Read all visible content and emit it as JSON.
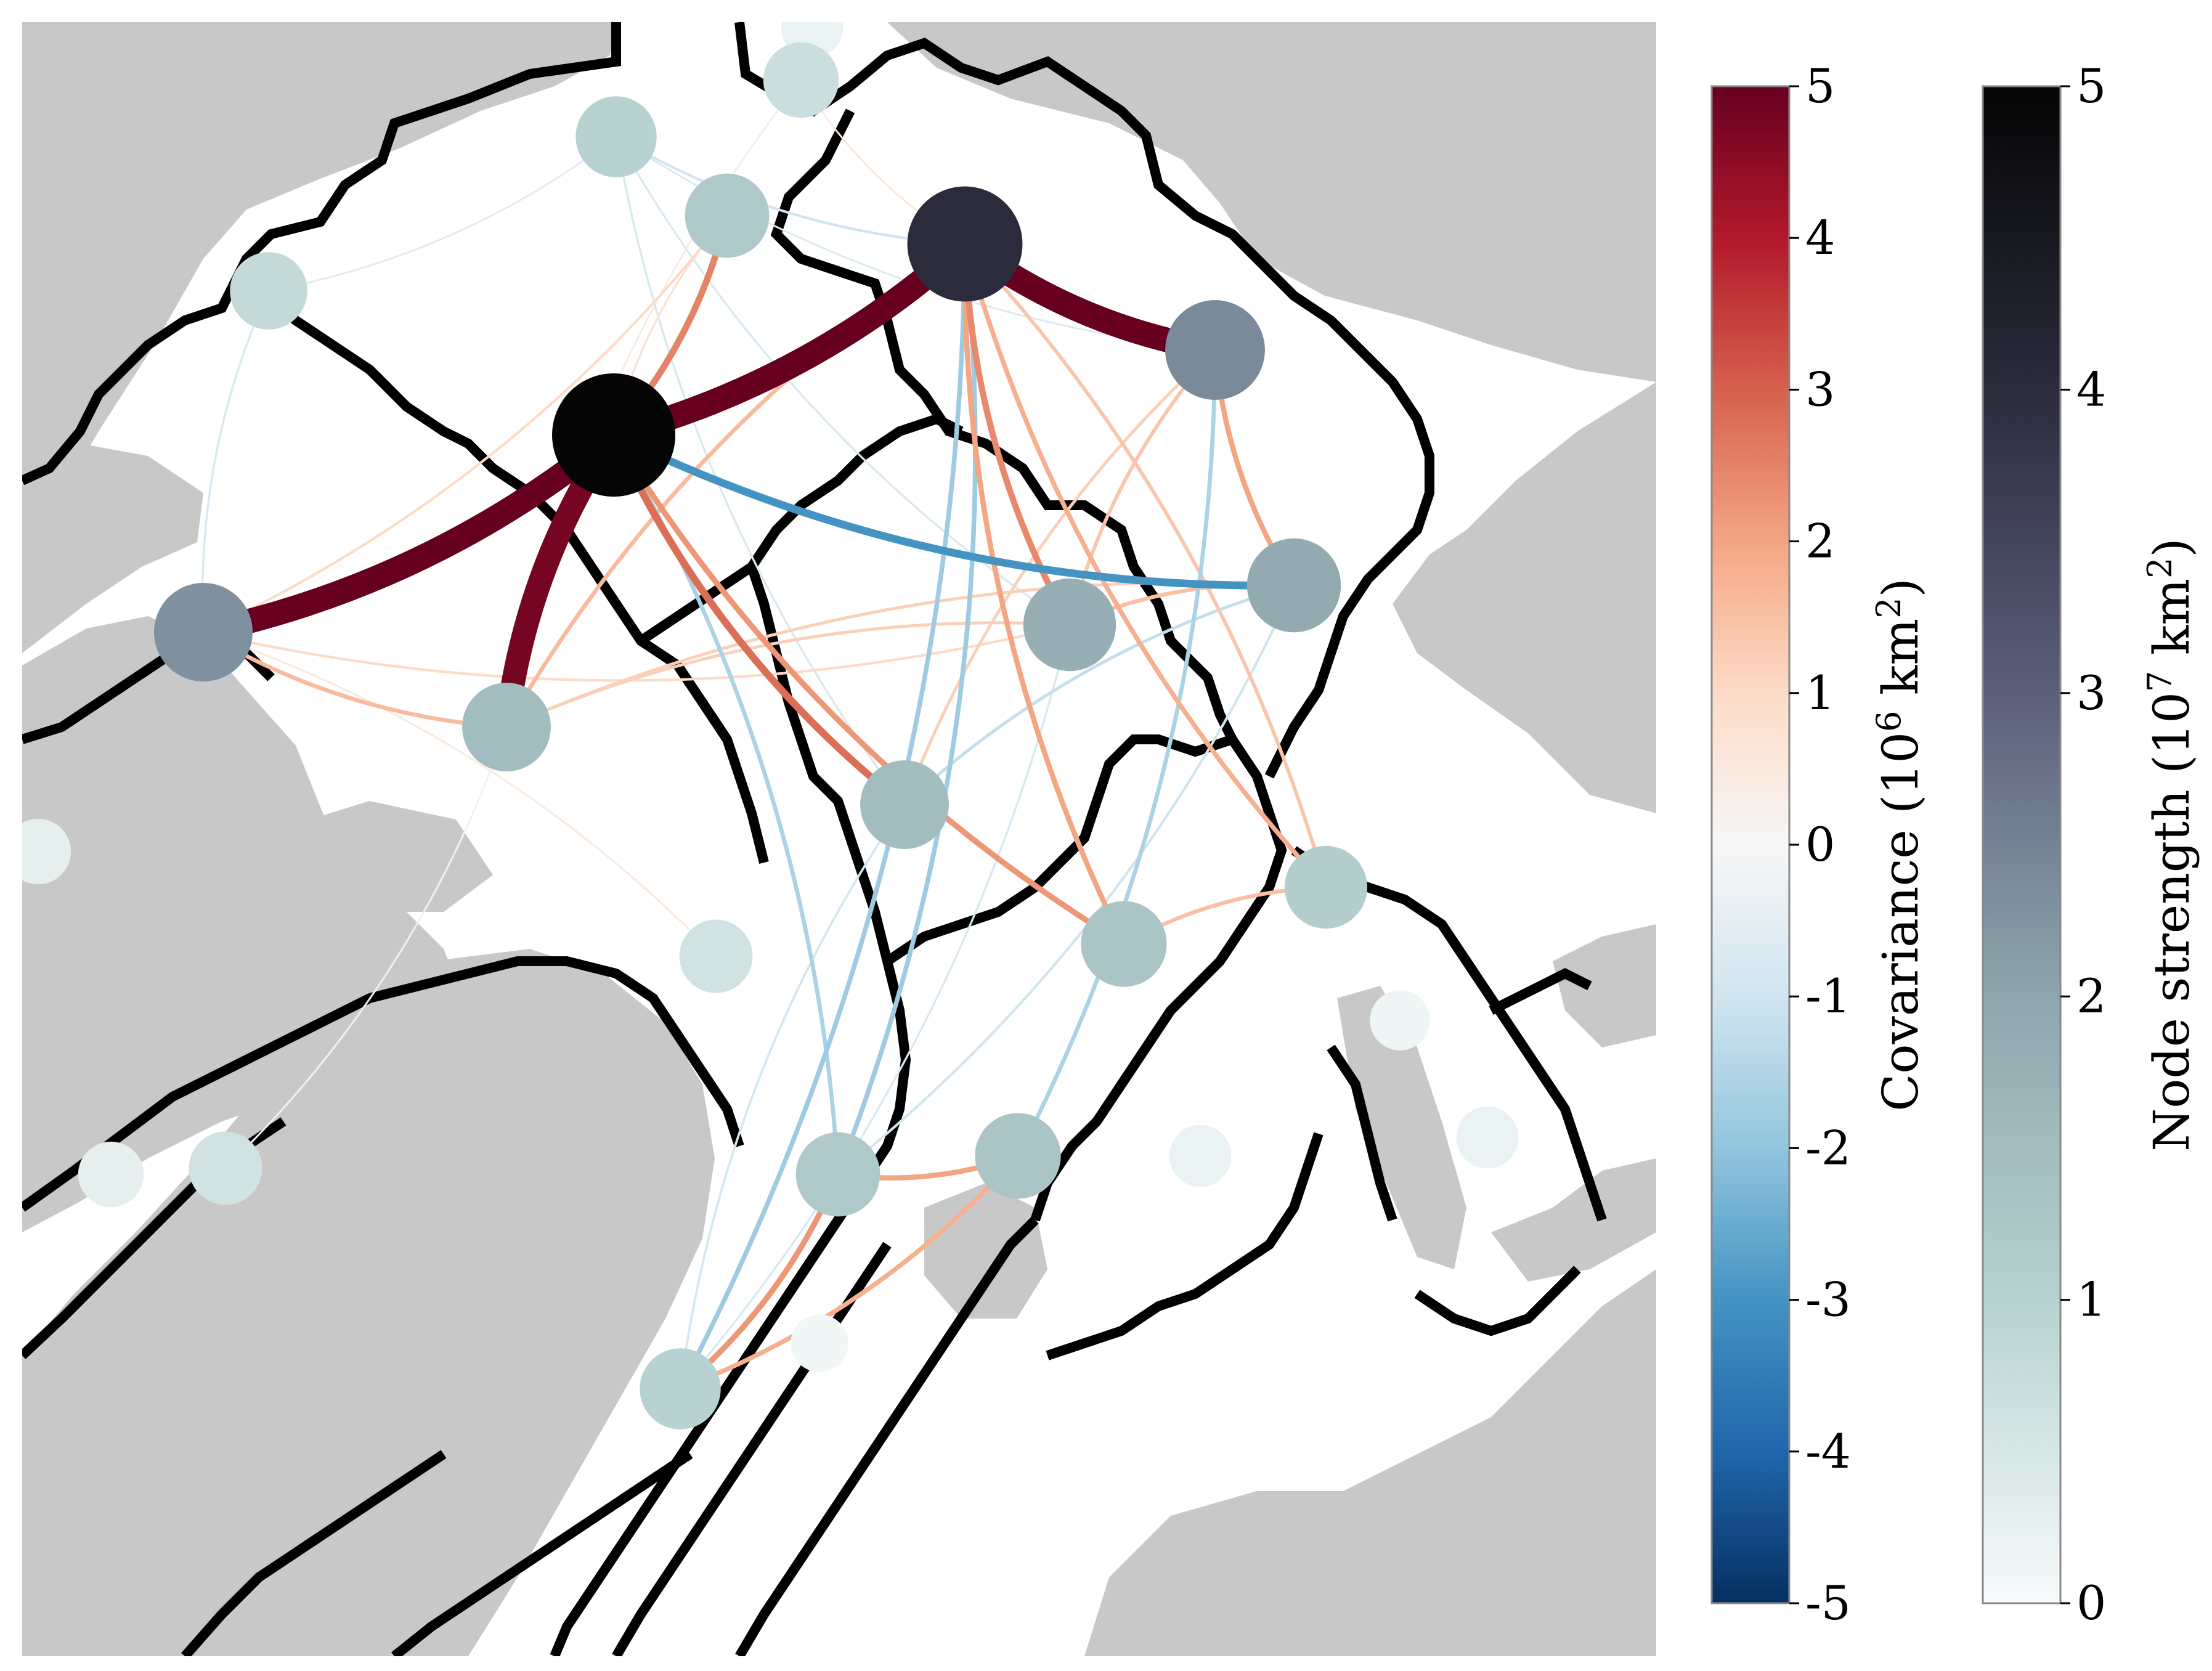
{
  "colorbars": {
    "covariance": {
      "label": "Covariance (10",
      "label_sup": "6",
      "label_unit": " km",
      "label_sup2": "2",
      "label_end": ")",
      "ticks": [
        "5",
        "4",
        "3",
        "2",
        "1",
        "0",
        "-1",
        "-2",
        "-3",
        "-4",
        "-5"
      ],
      "range": [
        -5,
        5
      ],
      "colormap": [
        "#053061",
        "#2166ac",
        "#4393c3",
        "#92c5de",
        "#d1e5f0",
        "#f7f7f7",
        "#fddbc7",
        "#f4a582",
        "#d6604d",
        "#b2182b",
        "#67001f"
      ]
    },
    "node_strength": {
      "label": "Node strength (10",
      "label_sup": "7",
      "label_unit": " km",
      "label_sup2": "2",
      "label_end": ")",
      "ticks": [
        "5",
        "4",
        "3",
        "2",
        "1",
        "0"
      ],
      "range": [
        0,
        5
      ],
      "colormap": [
        "#f7fbfb",
        "#b7d2d1",
        "#8fa6ad",
        "#5b5f7a",
        "#2b2b3c",
        "#050505"
      ]
    }
  },
  "colors": {
    "land": "#c8c8c8",
    "ocean": "#ffffff",
    "region_border": "#000000"
  },
  "network": {
    "nodes": [
      {
        "id": "n1",
        "strength": 5.0
      },
      {
        "id": "n2",
        "strength": 4.0
      },
      {
        "id": "n3",
        "strength": 2.4
      },
      {
        "id": "n4",
        "strength": 2.3
      },
      {
        "id": "n5",
        "strength": 1.9
      },
      {
        "id": "n6",
        "strength": 1.8
      },
      {
        "id": "n7",
        "strength": 1.5
      },
      {
        "id": "n8",
        "strength": 1.5
      },
      {
        "id": "n9",
        "strength": 1.3
      },
      {
        "id": "n10",
        "strength": 1.1
      },
      {
        "id": "n11",
        "strength": 1.2
      },
      {
        "id": "n12",
        "strength": 1.3
      },
      {
        "id": "n13",
        "strength": 1.2
      },
      {
        "id": "n14",
        "strength": 1.0
      },
      {
        "id": "n15",
        "strength": 1.0
      },
      {
        "id": "n16",
        "strength": 0.8
      },
      {
        "id": "n17",
        "strength": 0.6
      },
      {
        "id": "n18",
        "strength": 0.7
      },
      {
        "id": "n19",
        "strength": 0.6
      },
      {
        "id": "n20",
        "strength": 0.3
      },
      {
        "id": "n21",
        "strength": 0.3
      },
      {
        "id": "n22",
        "strength": 0.2
      },
      {
        "id": "n23",
        "strength": 0.2
      },
      {
        "id": "n24",
        "strength": 0.2
      },
      {
        "id": "n25",
        "strength": 0.15
      },
      {
        "id": "n26",
        "strength": 0.1
      }
    ],
    "edges": [
      {
        "from": "n4",
        "to": "n1",
        "cov": 5.0
      },
      {
        "from": "n1",
        "to": "n2",
        "cov": 5.0
      },
      {
        "from": "n2",
        "to": "n3",
        "cov": 5.0
      },
      {
        "from": "n1",
        "to": "n7",
        "cov": 4.8
      },
      {
        "from": "n1",
        "to": "n5",
        "cov": -3.0
      },
      {
        "from": "n1",
        "to": "n8",
        "cov": 2.8
      },
      {
        "from": "n1",
        "to": "n11",
        "cov": 2.5
      },
      {
        "from": "n1",
        "to": "n9",
        "cov": 2.2
      },
      {
        "from": "n2",
        "to": "n6",
        "cov": 2.4
      },
      {
        "from": "n2",
        "to": "n9",
        "cov": 2.0
      },
      {
        "from": "n2",
        "to": "n7",
        "cov": 1.6
      },
      {
        "from": "n2",
        "to": "n10",
        "cov": 1.8
      },
      {
        "from": "n3",
        "to": "n5",
        "cov": 2.0
      },
      {
        "from": "n3",
        "to": "n6",
        "cov": 1.4
      },
      {
        "from": "n3",
        "to": "n8",
        "cov": 1.2
      },
      {
        "from": "n4",
        "to": "n7",
        "cov": 1.6
      },
      {
        "from": "n4",
        "to": "n6",
        "cov": 1.0
      },
      {
        "from": "n4",
        "to": "n11",
        "cov": 1.0
      },
      {
        "from": "n5",
        "to": "n6",
        "cov": 1.5
      },
      {
        "from": "n5",
        "to": "n7",
        "cov": 1.2
      },
      {
        "from": "n5",
        "to": "n8",
        "cov": -1.2
      },
      {
        "from": "n6",
        "to": "n7",
        "cov": 1.2
      },
      {
        "from": "n10",
        "to": "n9",
        "cov": 1.5
      },
      {
        "from": "n10",
        "to": "n2",
        "cov": 1.4
      },
      {
        "from": "n14",
        "to": "n13",
        "cov": 2.2
      },
      {
        "from": "n13",
        "to": "n12",
        "cov": 2.0
      },
      {
        "from": "n14",
        "to": "n12",
        "cov": 1.8
      },
      {
        "from": "n12",
        "to": "n3",
        "cov": -1.6
      },
      {
        "from": "n14",
        "to": "n2",
        "cov": -1.8
      },
      {
        "from": "n13",
        "to": "n2",
        "cov": -1.8
      },
      {
        "from": "n13",
        "to": "n1",
        "cov": -1.6
      },
      {
        "from": "n15",
        "to": "n2",
        "cov": -1.0
      },
      {
        "from": "n15",
        "to": "n6",
        "cov": -0.8
      },
      {
        "from": "n15",
        "to": "n8",
        "cov": -0.8
      },
      {
        "from": "n16",
        "to": "n4",
        "cov": -0.8
      },
      {
        "from": "n16",
        "to": "n15",
        "cov": -0.6
      },
      {
        "from": "n13",
        "to": "n5",
        "cov": -1.0
      },
      {
        "from": "n14",
        "to": "n6",
        "cov": -0.8
      },
      {
        "from": "n15",
        "to": "n3",
        "cov": -0.7
      },
      {
        "from": "n8",
        "to": "n14",
        "cov": -0.9
      },
      {
        "from": "n11",
        "to": "n1",
        "cov": 0.8
      },
      {
        "from": "n17",
        "to": "n4",
        "cov": 0.5
      },
      {
        "from": "n18",
        "to": "n7",
        "cov": 0.4
      },
      {
        "from": "n19",
        "to": "n7",
        "cov": 0.3
      },
      {
        "from": "n18",
        "to": "n2",
        "cov": 0.5
      }
    ]
  }
}
